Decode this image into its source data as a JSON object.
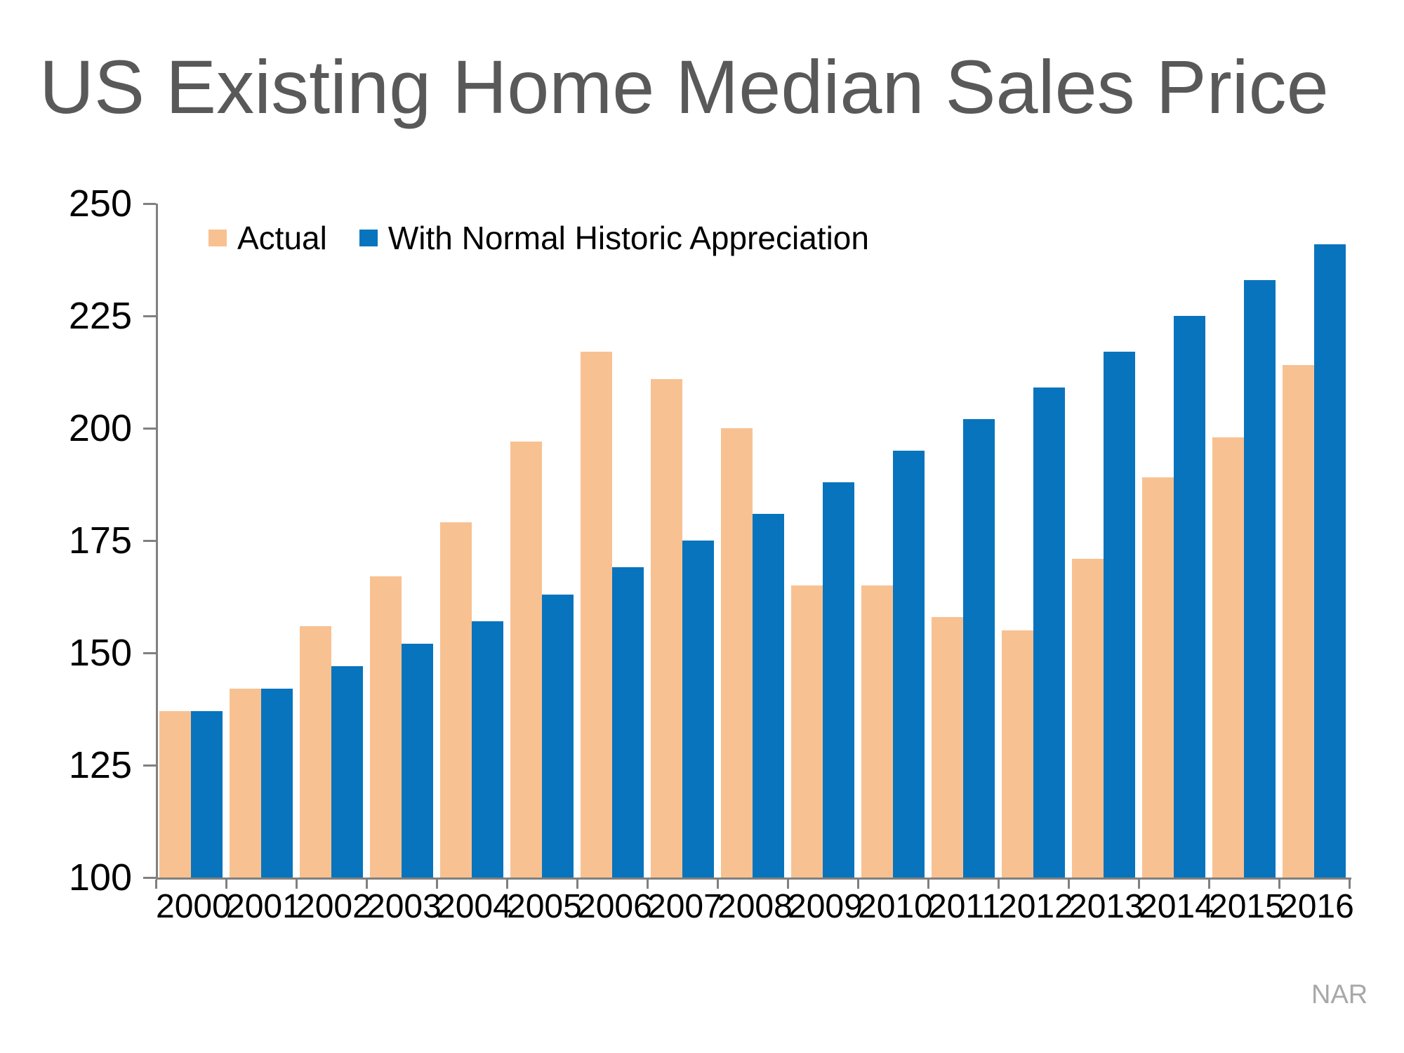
{
  "title": "US Existing Home Median Sales Price",
  "source": "NAR",
  "colors": {
    "actual": "#F8C192",
    "appreciation": "#0874BE",
    "title_text": "#595959",
    "axis": "#808080",
    "tick_label": "#000000",
    "source_text": "#A8A8A8"
  },
  "chart_data": {
    "type": "bar",
    "title": "US Existing Home Median Sales Price",
    "categories": [
      "2000",
      "2001",
      "2002",
      "2003",
      "2004",
      "2005",
      "2006",
      "2007",
      "2008",
      "2009",
      "2010",
      "2011",
      "2012",
      "2013",
      "2014",
      "2015",
      "2016"
    ],
    "series": [
      {
        "name": "Actual",
        "color": "#F8C192",
        "values": [
          137,
          142,
          156,
          167,
          179,
          197,
          217,
          211,
          200,
          165,
          165,
          158,
          155,
          171,
          189,
          198,
          214
        ]
      },
      {
        "name": "With Normal Historic Appreciation",
        "color": "#0874BE",
        "values": [
          137,
          142,
          147,
          152,
          157,
          163,
          169,
          175,
          181,
          188,
          195,
          202,
          209,
          217,
          225,
          233,
          241
        ]
      }
    ],
    "xlabel": "",
    "ylabel": "",
    "ylim": [
      100,
      250
    ],
    "y_ticks": [
      250,
      225,
      200,
      175,
      150,
      125,
      100
    ],
    "grid": false,
    "legend_position": "top-left-inside",
    "annotation": "NAR"
  }
}
